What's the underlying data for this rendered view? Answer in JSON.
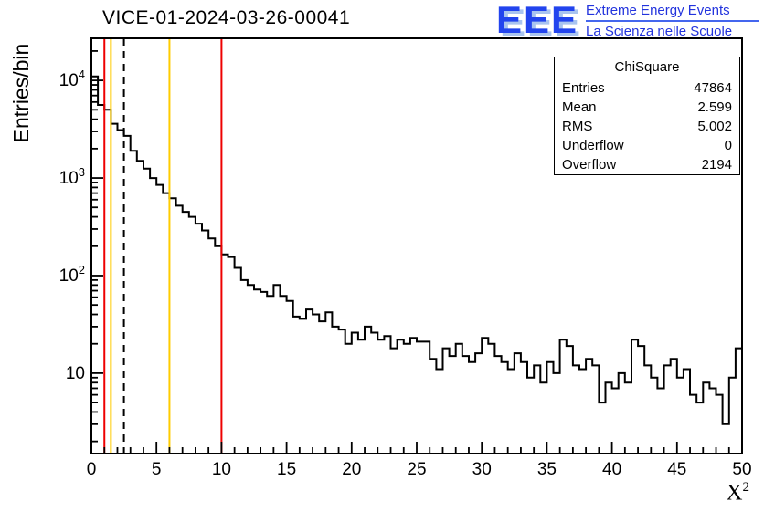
{
  "title": "VICE-01-2024-03-26-00041",
  "logo": {
    "big": "EEE",
    "line1": "Extreme Energy Events",
    "line2": "La Scienza nelle Scuole",
    "color": "#2244ee"
  },
  "stats": {
    "title": "ChiSquare",
    "rows": [
      [
        "Entries",
        "47864"
      ],
      [
        "Mean",
        "2.599"
      ],
      [
        "RMS",
        "5.002"
      ],
      [
        "Underflow",
        "0"
      ],
      [
        "Overflow",
        "2194"
      ]
    ]
  },
  "chart_data": {
    "type": "bar",
    "subtype": "histogram-step",
    "title": "VICE-01-2024-03-26-00041",
    "xlabel": "X^2",
    "xlabel_base": "X",
    "xlabel_exp": "2",
    "ylabel": "Entries/bin",
    "xlim": [
      0,
      50
    ],
    "ylim": [
      1.5,
      27000
    ],
    "yscale": "log",
    "grid": false,
    "legend": "none",
    "line_color": "#000000",
    "bin_start": 0,
    "bin_width": 0.5,
    "values": [
      11000,
      5600,
      5000,
      3600,
      3100,
      2700,
      1900,
      1500,
      1250,
      1000,
      850,
      700,
      620,
      520,
      450,
      400,
      340,
      290,
      240,
      200,
      165,
      155,
      120,
      90,
      80,
      72,
      68,
      62,
      80,
      62,
      55,
      38,
      36,
      45,
      40,
      34,
      42,
      30,
      28,
      20,
      26,
      22,
      30,
      26,
      22,
      24,
      18,
      22,
      20,
      23,
      21,
      21,
      14,
      11,
      18,
      15,
      20,
      15,
      13,
      16,
      23,
      20,
      15,
      13,
      11,
      16,
      13,
      9,
      12,
      8,
      13,
      10,
      22,
      19,
      12,
      11,
      14,
      12,
      5,
      8,
      7,
      10,
      8,
      22,
      19,
      12,
      9,
      7,
      12,
      14,
      9,
      11,
      6,
      5,
      8,
      7,
      6,
      3,
      9,
      18
    ],
    "xticks": [
      0,
      5,
      10,
      15,
      20,
      25,
      30,
      35,
      40,
      45,
      50
    ],
    "ytick_exponents": [
      1,
      2,
      3,
      4
    ],
    "vlines": [
      {
        "x": 1.0,
        "color": "#ee0000",
        "style": "solid"
      },
      {
        "x": 1.5,
        "color": "#ffcc00",
        "style": "solid"
      },
      {
        "x": 2.5,
        "color": "#000000",
        "style": "dashed"
      },
      {
        "x": 6.0,
        "color": "#ffcc00",
        "style": "solid"
      },
      {
        "x": 10.0,
        "color": "#ee0000",
        "style": "solid"
      }
    ]
  }
}
